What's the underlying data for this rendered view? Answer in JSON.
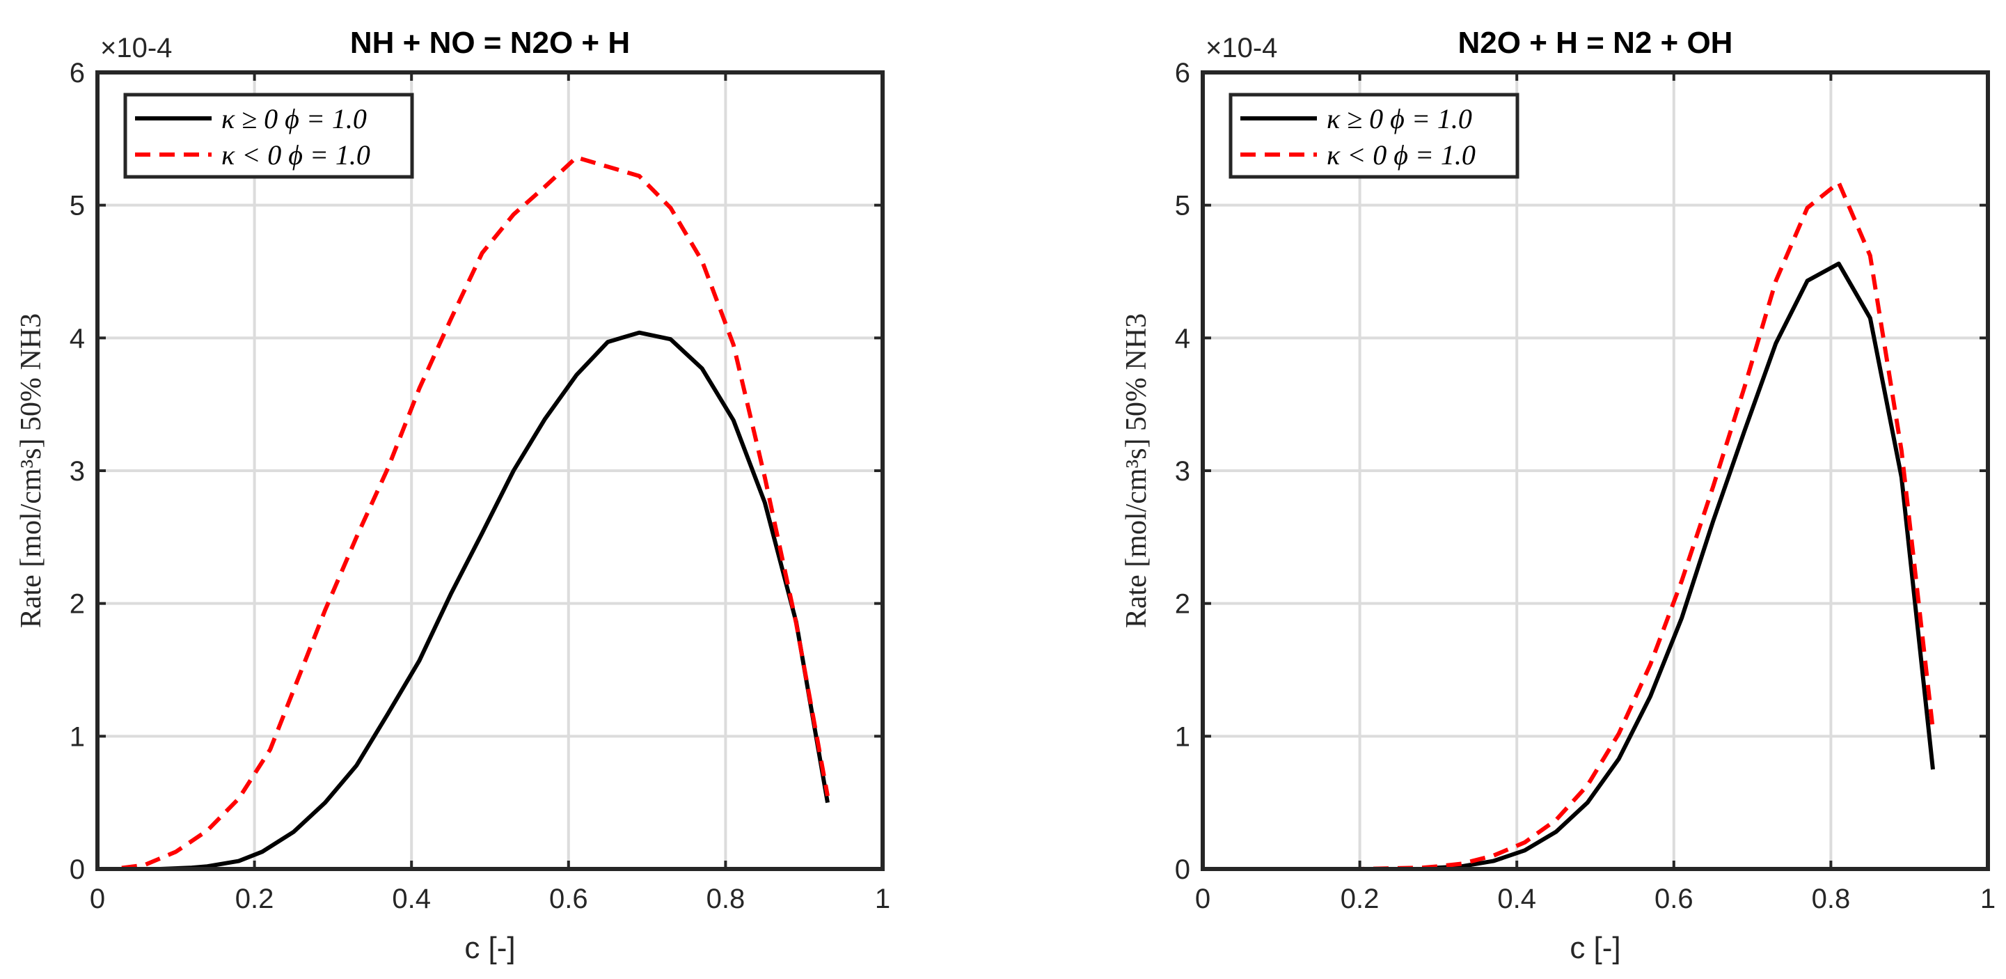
{
  "chart_data": [
    {
      "type": "line",
      "title": "NH + NO = N2O + H",
      "xlabel": "c [-]",
      "ylabel": "Rate [mol/cm³s] 50% NH3",
      "exponent_label": "×10-4",
      "xlim": [
        0,
        1
      ],
      "ylim": [
        0,
        6
      ],
      "xticks": [
        "0",
        "0.2",
        "0.4",
        "0.6",
        "0.8",
        "1"
      ],
      "yticks": [
        "0",
        "1",
        "2",
        "3",
        "4",
        "5",
        "6"
      ],
      "grid": true,
      "legend_position": "top-left",
      "series": [
        {
          "name": "κ ≥ 0 ϕ = 1.0",
          "style": "solid",
          "color": "#000000",
          "x": [
            0,
            0.04,
            0.08,
            0.12,
            0.14,
            0.18,
            0.21,
            0.25,
            0.29,
            0.33,
            0.37,
            0.41,
            0.45,
            0.49,
            0.53,
            0.57,
            0.61,
            0.65,
            0.69,
            0.73,
            0.77,
            0.81,
            0.85,
            0.89,
            0.93
          ],
          "y": [
            0,
            0,
            0,
            0.01,
            0.02,
            0.06,
            0.13,
            0.28,
            0.5,
            0.78,
            1.17,
            1.57,
            2.07,
            2.53,
            3.0,
            3.39,
            3.72,
            3.97,
            4.04,
            3.99,
            3.77,
            3.38,
            2.76,
            1.86,
            0.5
          ]
        },
        {
          "name": "κ < 0 ϕ = 1.0",
          "style": "dashed",
          "color": "#ff0000",
          "x": [
            0,
            0.02,
            0.06,
            0.1,
            0.14,
            0.18,
            0.22,
            0.25,
            0.29,
            0.33,
            0.37,
            0.41,
            0.45,
            0.49,
            0.53,
            0.57,
            0.61,
            0.65,
            0.69,
            0.73,
            0.77,
            0.81,
            0.85,
            0.89,
            0.93
          ],
          "y": [
            0,
            0,
            0.03,
            0.13,
            0.29,
            0.53,
            0.9,
            1.35,
            1.95,
            2.5,
            3.02,
            3.62,
            4.14,
            4.64,
            4.93,
            5.14,
            5.36,
            5.29,
            5.22,
            4.98,
            4.58,
            3.95,
            2.95,
            1.85,
            0.55
          ]
        }
      ]
    },
    {
      "type": "line",
      "title": "N2O + H = N2 + OH",
      "xlabel": "c [-]",
      "ylabel": "Rate [mol/cm³s] 50% NH3",
      "exponent_label": "×10-4",
      "xlim": [
        0,
        1
      ],
      "ylim": [
        0,
        6
      ],
      "xticks": [
        "0",
        "0.2",
        "0.4",
        "0.6",
        "0.8",
        "1"
      ],
      "yticks": [
        "0",
        "1",
        "2",
        "3",
        "4",
        "5",
        "6"
      ],
      "grid": true,
      "legend_position": "top-left",
      "series": [
        {
          "name": "κ ≥ 0 ϕ = 1.0",
          "style": "solid",
          "color": "#000000",
          "x": [
            0,
            0.1,
            0.2,
            0.28,
            0.3,
            0.33,
            0.37,
            0.41,
            0.45,
            0.49,
            0.53,
            0.57,
            0.61,
            0.65,
            0.69,
            0.73,
            0.77,
            0.81,
            0.85,
            0.89,
            0.93
          ],
          "y": [
            0,
            0,
            0,
            0,
            0.01,
            0.02,
            0.06,
            0.14,
            0.28,
            0.5,
            0.83,
            1.3,
            1.89,
            2.62,
            3.3,
            3.96,
            4.43,
            4.56,
            4.15,
            2.95,
            0.75
          ]
        },
        {
          "name": "κ < 0 ϕ = 1.0",
          "style": "dashed",
          "color": "#ff0000",
          "x": [
            0,
            0.1,
            0.2,
            0.28,
            0.3,
            0.33,
            0.37,
            0.41,
            0.45,
            0.49,
            0.53,
            0.57,
            0.61,
            0.65,
            0.69,
            0.73,
            0.77,
            0.81,
            0.85,
            0.89,
            0.93
          ],
          "y": [
            0,
            0,
            0,
            0.01,
            0.02,
            0.04,
            0.1,
            0.2,
            0.37,
            0.63,
            1.02,
            1.54,
            2.17,
            2.88,
            3.63,
            4.43,
            4.98,
            5.17,
            4.62,
            3.15,
            1.05
          ]
        }
      ]
    }
  ]
}
